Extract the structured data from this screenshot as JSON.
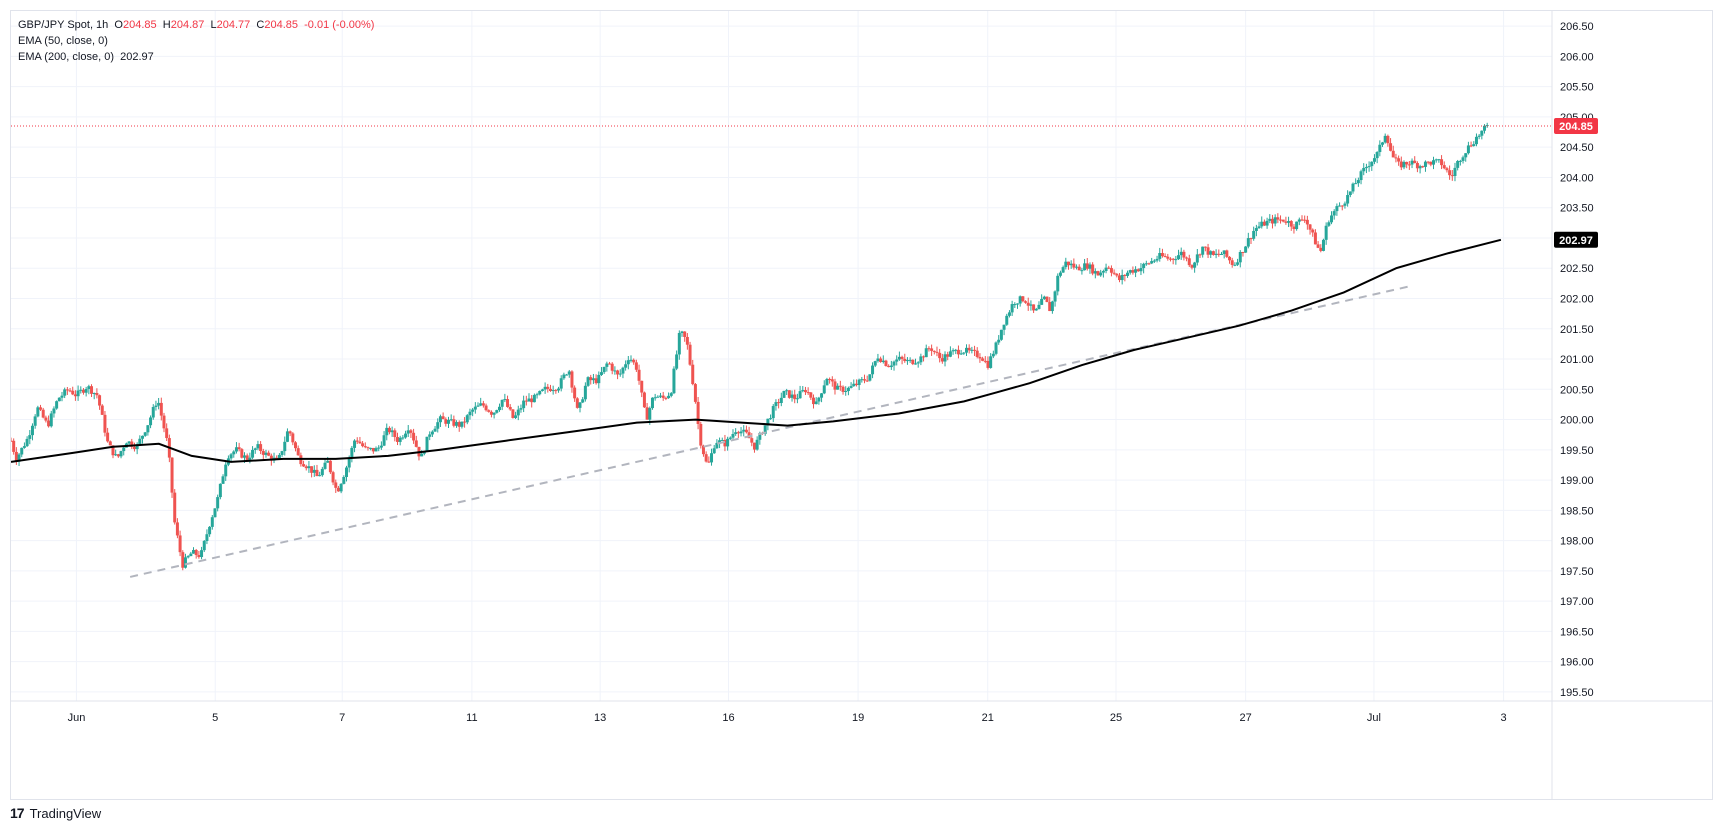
{
  "legend": {
    "symbol": "GBP/JPY Spot, 1h",
    "o_label": "O",
    "o_value": "204.85",
    "h_label": "H",
    "h_value": "204.87",
    "l_label": "L",
    "l_value": "204.77",
    "c_label": "C",
    "c_value": "204.85",
    "change": "-0.01 (-0.00%)",
    "ema50_label": "EMA (50, close, 0)",
    "ema200_label": "EMA (200, close, 0)",
    "ema200_value": "202.97"
  },
  "brand": {
    "logo_text": "17",
    "name": "TradingView"
  },
  "colors": {
    "up": "#26a69a",
    "down": "#ef5350",
    "ema": "#000000",
    "trend": "#b2b5be",
    "last_price": "#f23645",
    "grid": "#f0f3fa"
  },
  "chart_data": {
    "type": "candlestick",
    "symbol": "GBP/JPY Spot",
    "interval": "1h",
    "last_price": 204.85,
    "last_price_label": "204.85",
    "ema200_last": 202.97,
    "ema200_last_label": "202.97",
    "ylim": [
      195.35,
      206.75
    ],
    "y_ticks": [
      "195.50",
      "196.00",
      "196.50",
      "197.00",
      "197.50",
      "198.00",
      "198.50",
      "199.00",
      "199.50",
      "200.00",
      "200.50",
      "201.00",
      "201.50",
      "202.00",
      "202.50",
      "203.00",
      "203.50",
      "204.00",
      "204.50",
      "205.00",
      "205.50",
      "206.00",
      "206.50"
    ],
    "x_ticks": [
      {
        "label": "Jun",
        "t": 2.2
      },
      {
        "label": "5",
        "t": 12.8
      },
      {
        "label": "7",
        "t": 22.5
      },
      {
        "label": "11",
        "t": 32.4
      },
      {
        "label": "13",
        "t": 42.2
      },
      {
        "label": "16",
        "t": 52.0
      },
      {
        "label": "19",
        "t": 61.9
      },
      {
        "label": "21",
        "t": 71.8
      },
      {
        "label": "25",
        "t": 81.6
      },
      {
        "label": "27",
        "t": 91.5
      },
      {
        "label": "Jul",
        "t": 101.3
      },
      {
        "label": "3",
        "t": 111.2
      }
    ],
    "t_range": [
      -2.8,
      114.9
    ],
    "grid": true,
    "price_path": [
      [
        -2.8,
        199.65
      ],
      [
        -2.4,
        199.35
      ],
      [
        -1.5,
        199.7
      ],
      [
        -0.8,
        200.2
      ],
      [
        0.0,
        199.9
      ],
      [
        0.8,
        200.35
      ],
      [
        1.6,
        200.5
      ],
      [
        2.2,
        200.4
      ],
      [
        3.0,
        200.55
      ],
      [
        3.8,
        200.4
      ],
      [
        4.6,
        199.6
      ],
      [
        5.3,
        199.35
      ],
      [
        6.0,
        199.65
      ],
      [
        6.8,
        199.55
      ],
      [
        7.7,
        199.95
      ],
      [
        8.4,
        200.35
      ],
      [
        9.2,
        199.55
      ],
      [
        9.7,
        198.3
      ],
      [
        10.3,
        197.6
      ],
      [
        11.0,
        197.8
      ],
      [
        11.7,
        197.75
      ],
      [
        12.4,
        198.3
      ],
      [
        13.0,
        198.7
      ],
      [
        13.7,
        199.4
      ],
      [
        14.4,
        199.5
      ],
      [
        15.2,
        199.35
      ],
      [
        16.0,
        199.55
      ],
      [
        16.8,
        199.4
      ],
      [
        17.6,
        199.3
      ],
      [
        18.4,
        199.85
      ],
      [
        19.2,
        199.35
      ],
      [
        20.0,
        199.2
      ],
      [
        20.6,
        199.05
      ],
      [
        21.4,
        199.3
      ],
      [
        22.1,
        198.8
      ],
      [
        22.8,
        199.2
      ],
      [
        23.5,
        199.7
      ],
      [
        24.3,
        199.5
      ],
      [
        25.2,
        199.5
      ],
      [
        26.0,
        199.85
      ],
      [
        26.8,
        199.65
      ],
      [
        27.6,
        199.9
      ],
      [
        28.5,
        199.35
      ],
      [
        29.2,
        199.8
      ],
      [
        30.0,
        200.0
      ],
      [
        30.8,
        199.95
      ],
      [
        31.6,
        199.9
      ],
      [
        32.4,
        200.15
      ],
      [
        33.2,
        200.25
      ],
      [
        34.0,
        200.1
      ],
      [
        34.8,
        200.35
      ],
      [
        35.6,
        200.0
      ],
      [
        36.4,
        200.3
      ],
      [
        37.2,
        200.35
      ],
      [
        38.0,
        200.5
      ],
      [
        39.0,
        200.55
      ],
      [
        39.8,
        200.85
      ],
      [
        40.5,
        200.1
      ],
      [
        41.2,
        200.65
      ],
      [
        42.0,
        200.65
      ],
      [
        42.8,
        200.95
      ],
      [
        43.6,
        200.7
      ],
      [
        44.4,
        201.05
      ],
      [
        45.0,
        200.85
      ],
      [
        45.7,
        200.0
      ],
      [
        46.3,
        200.4
      ],
      [
        47.0,
        200.35
      ],
      [
        47.6,
        200.45
      ],
      [
        48.3,
        201.45
      ],
      [
        48.8,
        201.3
      ],
      [
        49.4,
        200.45
      ],
      [
        49.8,
        199.7
      ],
      [
        50.4,
        199.2
      ],
      [
        51.0,
        199.65
      ],
      [
        51.8,
        199.6
      ],
      [
        52.6,
        199.85
      ],
      [
        53.4,
        199.75
      ],
      [
        54.0,
        199.55
      ],
      [
        54.8,
        199.9
      ],
      [
        55.5,
        200.2
      ],
      [
        56.3,
        200.45
      ],
      [
        57.1,
        200.35
      ],
      [
        57.9,
        200.5
      ],
      [
        58.7,
        200.25
      ],
      [
        59.5,
        200.7
      ],
      [
        60.3,
        200.5
      ],
      [
        61.1,
        200.5
      ],
      [
        61.9,
        200.6
      ],
      [
        62.7,
        200.7
      ],
      [
        63.4,
        201.05
      ],
      [
        64.2,
        200.9
      ],
      [
        65.0,
        201.0
      ],
      [
        65.8,
        200.95
      ],
      [
        66.6,
        201.0
      ],
      [
        67.4,
        201.2
      ],
      [
        68.2,
        201.0
      ],
      [
        69.0,
        201.1
      ],
      [
        69.8,
        201.15
      ],
      [
        70.6,
        201.1
      ],
      [
        71.3,
        201.05
      ],
      [
        71.8,
        200.9
      ],
      [
        72.4,
        201.2
      ],
      [
        73.0,
        201.6
      ],
      [
        73.8,
        201.95
      ],
      [
        74.6,
        202.0
      ],
      [
        75.4,
        201.75
      ],
      [
        76.1,
        202.0
      ],
      [
        76.6,
        201.8
      ],
      [
        77.2,
        202.4
      ],
      [
        77.8,
        202.6
      ],
      [
        78.6,
        202.5
      ],
      [
        79.4,
        202.55
      ],
      [
        80.2,
        202.4
      ],
      [
        81.0,
        202.55
      ],
      [
        81.8,
        202.3
      ],
      [
        82.6,
        202.45
      ],
      [
        83.4,
        202.5
      ],
      [
        84.2,
        202.6
      ],
      [
        85.0,
        202.7
      ],
      [
        85.8,
        202.65
      ],
      [
        86.6,
        202.75
      ],
      [
        87.4,
        202.55
      ],
      [
        88.2,
        202.85
      ],
      [
        89.0,
        202.7
      ],
      [
        89.8,
        202.75
      ],
      [
        90.6,
        202.55
      ],
      [
        91.4,
        202.85
      ],
      [
        92.2,
        203.15
      ],
      [
        93.0,
        203.25
      ],
      [
        93.8,
        203.3
      ],
      [
        94.5,
        203.3
      ],
      [
        95.2,
        203.2
      ],
      [
        96.0,
        203.35
      ],
      [
        96.6,
        203.05
      ],
      [
        97.2,
        202.75
      ],
      [
        97.8,
        203.3
      ],
      [
        98.5,
        203.5
      ],
      [
        99.2,
        203.65
      ],
      [
        100.0,
        203.95
      ],
      [
        100.8,
        204.2
      ],
      [
        101.6,
        204.4
      ],
      [
        102.2,
        204.75
      ],
      [
        102.7,
        204.35
      ],
      [
        103.2,
        204.2
      ],
      [
        104.0,
        204.25
      ],
      [
        104.8,
        204.2
      ],
      [
        105.6,
        204.25
      ],
      [
        106.4,
        204.25
      ],
      [
        107.2,
        204.0
      ],
      [
        107.8,
        204.3
      ],
      [
        108.5,
        204.5
      ],
      [
        109.3,
        204.7
      ],
      [
        110.0,
        204.85
      ]
    ],
    "ema200": [
      [
        -2.8,
        199.3
      ],
      [
        2.0,
        199.45
      ],
      [
        5.0,
        199.55
      ],
      [
        8.5,
        199.6
      ],
      [
        11.0,
        199.4
      ],
      [
        14.0,
        199.3
      ],
      [
        18.0,
        199.35
      ],
      [
        22.0,
        199.35
      ],
      [
        26.0,
        199.4
      ],
      [
        30.0,
        199.5
      ],
      [
        35.0,
        199.65
      ],
      [
        40.0,
        199.8
      ],
      [
        45.0,
        199.95
      ],
      [
        49.5,
        200.0
      ],
      [
        53.0,
        199.95
      ],
      [
        56.5,
        199.9
      ],
      [
        60.0,
        199.97
      ],
      [
        65.0,
        200.1
      ],
      [
        70.0,
        200.3
      ],
      [
        72.5,
        200.45
      ],
      [
        75.0,
        200.6
      ],
      [
        79.0,
        200.9
      ],
      [
        83.0,
        201.15
      ],
      [
        87.0,
        201.35
      ],
      [
        91.0,
        201.55
      ],
      [
        95.0,
        201.8
      ],
      [
        99.0,
        202.1
      ],
      [
        103.0,
        202.5
      ],
      [
        107.0,
        202.75
      ],
      [
        111.0,
        202.97
      ]
    ],
    "trendline": [
      [
        6.3,
        197.4
      ],
      [
        104.0,
        202.2
      ]
    ]
  }
}
